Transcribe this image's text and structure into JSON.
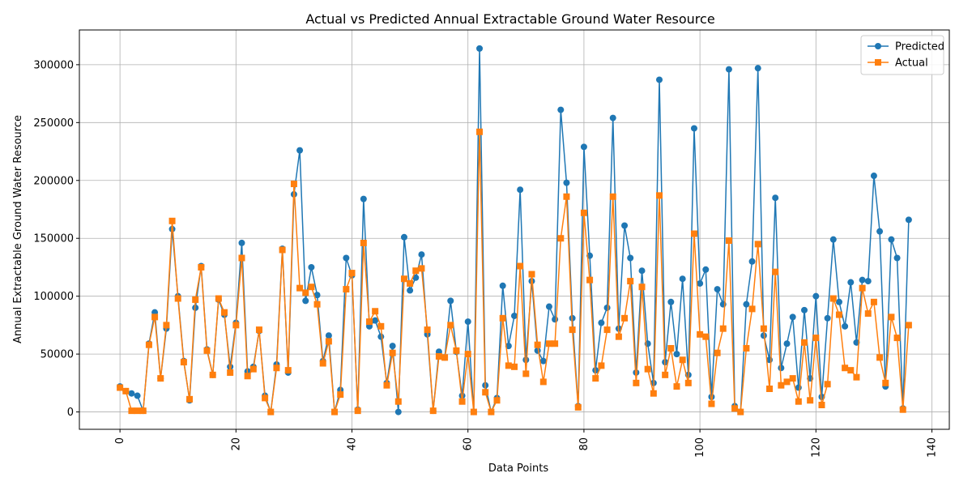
{
  "chart_data": {
    "type": "line",
    "title": "Actual vs Predicted Annual Extractable Ground Water Resource",
    "xlabel": "Data Points",
    "ylabel": "Annual Extractable Ground Water Resource",
    "xlim": [
      -7,
      143
    ],
    "ylim": [
      -15000,
      330000
    ],
    "x_ticks": [
      0,
      20,
      40,
      60,
      80,
      100,
      120,
      140
    ],
    "y_ticks": [
      0,
      50000,
      100000,
      150000,
      200000,
      250000,
      300000
    ],
    "x_tick_labels": [
      "0",
      "20",
      "40",
      "60",
      "80",
      "100",
      "120",
      "140"
    ],
    "y_tick_labels": [
      "0",
      "50000",
      "100000",
      "150000",
      "200000",
      "250000",
      "300000"
    ],
    "grid": true,
    "legend_position": "top-right",
    "series": [
      {
        "name": "Predicted",
        "color": "#1f77b4",
        "marker": "circle",
        "values": [
          22000,
          18000,
          16000,
          14000,
          1000,
          59000,
          86000,
          29000,
          72000,
          158000,
          100000,
          44000,
          10000,
          90000,
          126000,
          54000,
          32000,
          97000,
          84000,
          39000,
          77000,
          146000,
          35000,
          39000,
          70000,
          14000,
          0,
          41000,
          141000,
          34000,
          188000,
          226000,
          96000,
          125000,
          101000,
          44000,
          66000,
          0,
          19000,
          133000,
          118000,
          2000,
          184000,
          74000,
          79000,
          65000,
          25000,
          57000,
          0,
          151000,
          105000,
          116000,
          136000,
          67000,
          1000,
          52000,
          47000,
          96000,
          52000,
          14000,
          78000,
          0,
          314000,
          23000,
          0,
          12000,
          109000,
          57000,
          83000,
          192000,
          45000,
          113000,
          53000,
          44000,
          91000,
          80000,
          261000,
          198000,
          81000,
          5000,
          229000,
          135000,
          36000,
          77000,
          90000,
          254000,
          72000,
          161000,
          133000,
          34000,
          122000,
          59000,
          25000,
          287000,
          43000,
          95000,
          50000,
          115000,
          32000,
          245000,
          111000,
          123000,
          13000,
          106000,
          93000,
          296000,
          5000,
          0,
          93000,
          130000,
          297000,
          66000,
          45000,
          185000,
          38000,
          59000,
          82000,
          21000,
          88000,
          29000,
          100000,
          13000,
          81000,
          149000,
          95000,
          74000,
          112000,
          60000,
          114000,
          113000,
          204000,
          156000,
          22000,
          149000,
          133000,
          3000,
          166000
        ]
      },
      {
        "name": "Actual",
        "color": "#ff7f0e",
        "marker": "square",
        "values": [
          21000,
          18000,
          1000,
          1000,
          1000,
          58000,
          82000,
          29000,
          75000,
          165000,
          98000,
          43000,
          11000,
          97000,
          125000,
          53000,
          32000,
          98000,
          86000,
          34000,
          75000,
          133000,
          31000,
          37000,
          71000,
          12000,
          0,
          38000,
          140000,
          36000,
          197000,
          107000,
          103000,
          108000,
          93000,
          42000,
          61000,
          0,
          15000,
          106000,
          120000,
          1000,
          146000,
          78000,
          87000,
          74000,
          23000,
          51000,
          9000,
          115000,
          111000,
          122000,
          124000,
          71000,
          1000,
          48000,
          47000,
          75000,
          53000,
          9000,
          50000,
          0,
          242000,
          17000,
          0,
          10000,
          81000,
          40000,
          39000,
          126000,
          33000,
          119000,
          58000,
          26000,
          59000,
          59000,
          150000,
          186000,
          71000,
          4000,
          172000,
          114000,
          29000,
          40000,
          71000,
          186000,
          65000,
          81000,
          113000,
          25000,
          108000,
          37000,
          16000,
          187000,
          32000,
          55000,
          22000,
          45000,
          25000,
          154000,
          67000,
          65000,
          7000,
          51000,
          72000,
          148000,
          3000,
          0,
          55000,
          89000,
          145000,
          72000,
          20000,
          121000,
          23000,
          26000,
          29000,
          9000,
          60000,
          10000,
          64000,
          6000,
          24000,
          98000,
          84000,
          38000,
          36000,
          30000,
          107000,
          85000,
          95000,
          47000,
          25000,
          82000,
          64000,
          2000,
          75000
        ]
      }
    ]
  }
}
